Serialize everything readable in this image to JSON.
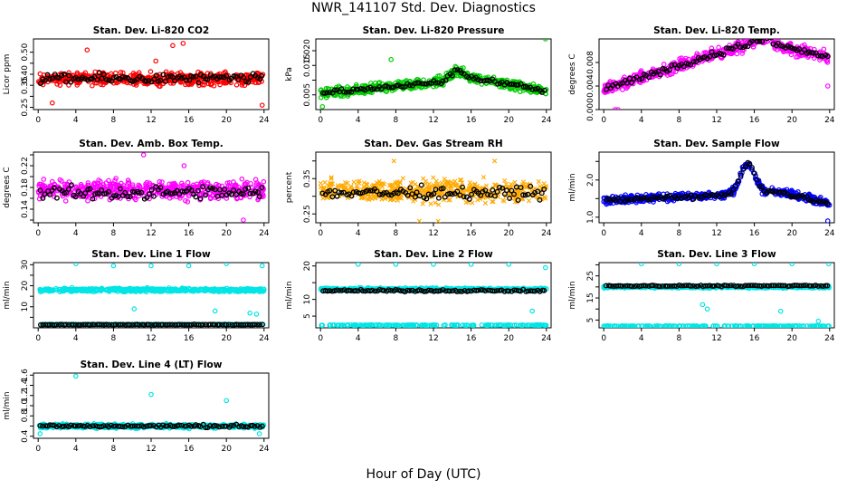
{
  "page": {
    "title": "NWR_141107  Std. Dev. Diagnostics",
    "xlabel": "Hour of Day (UTC)"
  },
  "chart_data": [
    {
      "type": "scatter",
      "title": "Stan. Dev. Li-820 CO2",
      "ylabel": "Licor ppm",
      "xlim": [
        -0.5,
        24.5
      ],
      "ylim": [
        0.24,
        0.56
      ],
      "yticks": [
        0.25,
        0.3,
        0.35,
        0.4,
        0.45,
        0.5
      ],
      "ytick_labels": [
        "0.25",
        "",
        "0.35",
        "0.40",
        "",
        "0.50"
      ],
      "xticks": [
        0,
        4,
        8,
        12,
        16,
        20,
        24
      ],
      "color": "#ff0000",
      "black_marker": "o",
      "color_marker": "o",
      "color_series": {
        "pattern": "band",
        "center": 0.38,
        "spread": 0.04,
        "outliers": [
          [
            5.2,
            0.51
          ],
          [
            14.3,
            0.53
          ],
          [
            15.4,
            0.54
          ],
          [
            23.8,
            0.26
          ],
          [
            1.5,
            0.27
          ],
          [
            12.5,
            0.46
          ]
        ]
      },
      "black_series": {
        "center": 0.38,
        "spread": 0.03
      }
    },
    {
      "type": "scatter",
      "title": "Stan. Dev. Li-820 Pressure",
      "ylabel": "kPa",
      "xlim": [
        -0.5,
        24.5
      ],
      "ylim": [
        0.0,
        0.024
      ],
      "yticks": [
        0.005,
        0.01,
        0.015,
        0.02
      ],
      "ytick_labels": [
        "0.005",
        "",
        "0.015",
        "0.020"
      ],
      "xticks": [
        0,
        4,
        8,
        12,
        16,
        20,
        24
      ],
      "color": "#00cc00",
      "black_marker": "o",
      "color_marker": "o",
      "color_series": {
        "pattern": "pressure",
        "outliers": [
          [
            7.5,
            0.017
          ],
          [
            23.9,
            0.024
          ],
          [
            0.2,
            0.001
          ]
        ]
      },
      "black_series": {
        "pattern": "pressure"
      }
    },
    {
      "type": "scatter",
      "title": "Stan. Dev. Li-820 Temp.",
      "ylabel": "degrees C",
      "xlim": [
        -0.5,
        24.5
      ],
      "ylim": [
        0.0,
        0.012
      ],
      "yticks": [
        0.0,
        0.004,
        0.008
      ],
      "ytick_labels": [
        "0.000",
        "0.004",
        "0.008"
      ],
      "xticks": [
        0,
        4,
        8,
        12,
        16,
        20,
        24
      ],
      "color": "#ff00ff",
      "black_marker": "o",
      "color_marker": "o",
      "color_series": {
        "pattern": "temp",
        "outliers": [
          [
            1.2,
            0.0
          ],
          [
            1.5,
            0.0
          ],
          [
            23.8,
            0.004
          ]
        ]
      },
      "black_series": {
        "pattern": "temp"
      }
    },
    {
      "type": "scatter",
      "title": "Stan. Dev. Amb. Box Temp.",
      "ylabel": "degrees C",
      "xlim": [
        -0.5,
        24.5
      ],
      "ylim": [
        0.115,
        0.245
      ],
      "yticks": [
        0.12,
        0.14,
        0.16,
        0.18,
        0.2,
        0.22,
        0.24
      ],
      "ytick_labels": [
        "",
        "0.14",
        "",
        "0.18",
        "",
        "0.22",
        ""
      ],
      "xticks": [
        0,
        4,
        8,
        12,
        16,
        20,
        24
      ],
      "color": "#ff00ff",
      "black_marker": "o",
      "color_marker": "o",
      "color_series": {
        "pattern": "band",
        "center": 0.175,
        "spread": 0.025,
        "outliers": [
          [
            11.2,
            0.24
          ],
          [
            21.8,
            0.12
          ],
          [
            15.5,
            0.22
          ]
        ]
      },
      "black_series": {
        "center": 0.17,
        "spread": 0.018
      }
    },
    {
      "type": "scatter",
      "title": "Stan. Dev. Gas Stream RH",
      "ylabel": "percent",
      "xlim": [
        -0.5,
        24.5
      ],
      "ylim": [
        0.225,
        0.425
      ],
      "yticks": [
        0.25,
        0.3,
        0.35,
        0.4
      ],
      "ytick_labels": [
        "0.25",
        "",
        "0.35",
        ""
      ],
      "xticks": [
        0,
        4,
        8,
        12,
        16,
        20,
        24
      ],
      "color": "#ffaa00",
      "black_marker": "o",
      "color_marker": "x",
      "color_series": {
        "pattern": "band",
        "center": 0.315,
        "spread": 0.045,
        "outliers": [
          [
            10.5,
            0.23
          ],
          [
            12.5,
            0.23
          ],
          [
            7.8,
            0.4
          ],
          [
            18.5,
            0.4
          ]
        ]
      },
      "black_series": {
        "center": 0.31,
        "spread": 0.025
      }
    },
    {
      "type": "scatter",
      "title": "Stan. Dev. Sample Flow",
      "ylabel": "ml/min",
      "xlim": [
        -0.5,
        24.5
      ],
      "ylim": [
        0.85,
        2.75
      ],
      "yticks": [
        1.0,
        1.5,
        2.0,
        2.5
      ],
      "ytick_labels": [
        "1.0",
        "",
        "2.0",
        ""
      ],
      "xticks": [
        0,
        4,
        8,
        12,
        16,
        20,
        24
      ],
      "color": "#0000ff",
      "black_marker": "o",
      "color_marker": "o",
      "color_series": {
        "pattern": "sampleflow",
        "outliers": [
          [
            23.8,
            0.9
          ]
        ]
      },
      "black_series": {
        "pattern": "sampleflow"
      }
    },
    {
      "type": "scatter",
      "title": "Stan. Dev. Line 1 Flow",
      "ylabel": "ml/min",
      "xlim": [
        -0.5,
        24.5
      ],
      "ylim": [
        0.0,
        31.0
      ],
      "yticks": [
        5,
        10,
        15,
        20,
        25,
        30
      ],
      "ytick_labels": [
        "",
        "10",
        "",
        "20",
        "",
        "30"
      ],
      "xticks": [
        0,
        4,
        8,
        12,
        16,
        20,
        24
      ],
      "color": "#00e5e5",
      "black_marker": "o",
      "color_marker": "o",
      "color_series": {
        "pattern": "line1",
        "outliers": [
          [
            4.0,
            30.5
          ],
          [
            8.0,
            29.5
          ],
          [
            12.0,
            29.5
          ],
          [
            16.0,
            29.5
          ],
          [
            20.0,
            30.5
          ],
          [
            23.8,
            29.5
          ],
          [
            10.2,
            9.0
          ],
          [
            18.8,
            8.0
          ],
          [
            22.5,
            7.0
          ],
          [
            23.2,
            6.5
          ]
        ]
      },
      "black_series": {
        "center": 1.5,
        "spread": 0.2
      }
    },
    {
      "type": "scatter",
      "title": "Stan. Dev. Line 2 Flow",
      "ylabel": "ml/min",
      "xlim": [
        -0.5,
        24.5
      ],
      "ylim": [
        1.5,
        21.0
      ],
      "yticks": [
        5,
        10,
        15,
        20
      ],
      "ytick_labels": [
        "5",
        "10",
        "",
        "20"
      ],
      "xticks": [
        0,
        4,
        8,
        12,
        16,
        20,
        24
      ],
      "color": "#00e5e5",
      "black_marker": "o",
      "color_marker": "o",
      "color_series": {
        "pattern": "line2",
        "outliers": [
          [
            4.0,
            20.5
          ],
          [
            8.0,
            20.5
          ],
          [
            12.0,
            20.5
          ],
          [
            16.0,
            20.5
          ],
          [
            20.0,
            20.5
          ],
          [
            23.9,
            19.5
          ],
          [
            22.5,
            6.5
          ]
        ]
      },
      "black_series": {
        "center": 12.6,
        "spread": 0.4
      }
    },
    {
      "type": "scatter",
      "title": "Stan. Dev. Line 3 Flow",
      "ylabel": "ml/min",
      "xlim": [
        -0.5,
        24.5
      ],
      "ylim": [
        1.5,
        31.0
      ],
      "yticks": [
        5,
        10,
        15,
        20,
        25,
        30
      ],
      "ytick_labels": [
        "5",
        "",
        "15",
        "",
        "25",
        ""
      ],
      "xticks": [
        0,
        4,
        8,
        12,
        16,
        20,
        24
      ],
      "color": "#00e5e5",
      "black_marker": "o",
      "color_marker": "o",
      "color_series": {
        "pattern": "line3",
        "outliers": [
          [
            4.0,
            30.5
          ],
          [
            8.0,
            30.5
          ],
          [
            12.0,
            30.5
          ],
          [
            16.0,
            30.5
          ],
          [
            20.0,
            30.5
          ],
          [
            23.9,
            30.5
          ],
          [
            10.5,
            12.0
          ],
          [
            11.0,
            10.0
          ],
          [
            18.8,
            9.0
          ],
          [
            22.8,
            4.5
          ]
        ]
      },
      "black_series": {
        "center": 20.5,
        "spread": 0.4
      }
    },
    {
      "type": "scatter",
      "title": "Stan. Dev. Line 4 (LT) Flow",
      "ylabel": "ml/min",
      "xlim": [
        -0.5,
        24.5
      ],
      "ylim": [
        0.36,
        1.64
      ],
      "yticks": [
        0.4,
        0.6,
        0.8,
        1.0,
        1.2,
        1.4,
        1.6
      ],
      "ytick_labels": [
        "0.4",
        "",
        "0.8",
        "1.0",
        "1.2",
        "1.4",
        "1.6"
      ],
      "xticks": [
        0,
        4,
        8,
        12,
        16,
        20,
        24
      ],
      "color": "#00e5e5",
      "black_marker": "o",
      "color_marker": "o",
      "color_series": {
        "pattern": "band",
        "center": 0.6,
        "spread": 0.06,
        "outliers": [
          [
            4.0,
            1.58
          ],
          [
            12.0,
            1.22
          ],
          [
            20.0,
            1.1
          ],
          [
            0.2,
            0.45
          ],
          [
            23.5,
            0.45
          ]
        ]
      },
      "black_series": {
        "center": 0.6,
        "spread": 0.04
      }
    }
  ]
}
